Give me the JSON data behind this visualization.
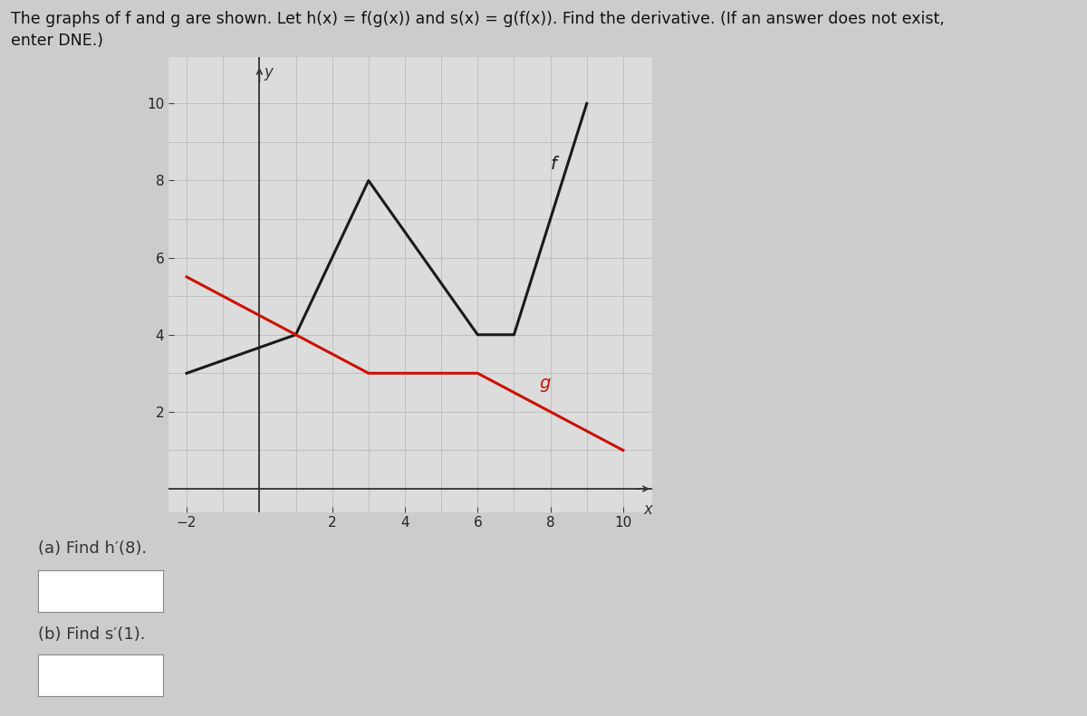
{
  "title_line1": "The graphs of f and g are shown. Let h(x) = f(g(x)) and s(x) = g(f(x)). Find the derivative. (If an answer does not exist,",
  "title_line2": "enter DNE.)",
  "title_fontsize": 12.5,
  "f_points": [
    [
      -2,
      3
    ],
    [
      1,
      4
    ],
    [
      3,
      8
    ],
    [
      6,
      4
    ],
    [
      7,
      4
    ],
    [
      9,
      10
    ]
  ],
  "g_points": [
    [
      -2,
      5.5
    ],
    [
      3,
      3
    ],
    [
      6,
      3
    ],
    [
      10,
      1
    ]
  ],
  "f_color": "#1a1a1a",
  "g_color": "#cc1100",
  "f_label": "f",
  "g_label": "g",
  "xlabel": "x",
  "ylabel": "y",
  "xlim": [
    -2.5,
    10.8
  ],
  "ylim": [
    -0.6,
    11.2
  ],
  "xticks": [
    -2,
    2,
    4,
    6,
    8,
    10
  ],
  "yticks": [
    2,
    4,
    6,
    8,
    10
  ],
  "grid_color": "#bbbbbb",
  "plot_bg_color": "#dcdcdc",
  "fig_bg_color": "#cccccc",
  "part_a_text": "(a) Find h′(8).",
  "part_b_text": "(b) Find s′(1).",
  "fig_width": 12.0,
  "fig_height": 7.91
}
